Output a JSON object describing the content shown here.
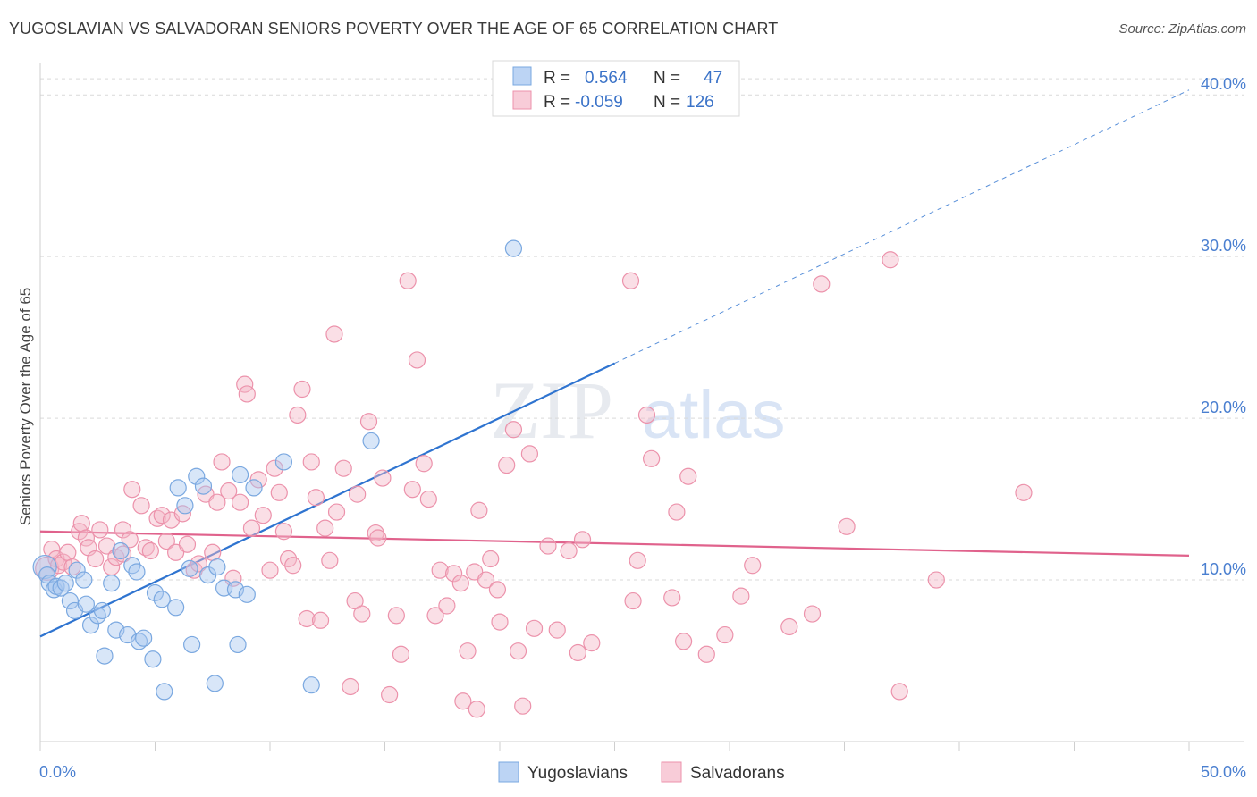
{
  "header": {
    "title": "YUGOSLAVIAN VS SALVADORAN SENIORS POVERTY OVER THE AGE OF 65 CORRELATION CHART",
    "source": "Source: ZipAtlas.com"
  },
  "watermark": {
    "zip": "ZIP",
    "atlas": "atlas"
  },
  "legend": {
    "rows": [
      {
        "r_label": "R =",
        "r_value": "0.564",
        "n_label": "N =",
        "n_value": "47",
        "color": "#a9c8f0"
      },
      {
        "r_label": "R =",
        "r_value": "-0.059",
        "n_label": "N =",
        "n_value": "126",
        "color": "#f5b8c8"
      }
    ]
  },
  "bottom_legend": [
    {
      "label": "Yugoslavians",
      "color": "#a9c8f0"
    },
    {
      "label": "Salvadorans",
      "color": "#f5b8c8"
    }
  ],
  "chart_data": {
    "type": "scatter",
    "title": "YUGOSLAVIAN VS SALVADORAN SENIORS POVERTY OVER THE AGE OF 65 CORRELATION CHART",
    "ylabel": "Seniors Poverty Over the Age of 65",
    "xlabel": "",
    "xlim": [
      0,
      50
    ],
    "ylim": [
      0,
      42
    ],
    "x_tick_labels": [
      {
        "value": 0,
        "label": "0.0%"
      },
      {
        "value": 50,
        "label": "50.0%"
      }
    ],
    "y_tick_labels": [
      {
        "value": 10,
        "label": "10.0%"
      },
      {
        "value": 20,
        "label": "20.0%"
      },
      {
        "value": 30,
        "label": "30.0%"
      },
      {
        "value": 40,
        "label": "40.0%"
      }
    ],
    "grid": "horizontal dashed",
    "legend_position": "top-center",
    "series": [
      {
        "name": "Yugoslavians",
        "color": "#a9c8f0",
        "stroke": "#7aa8e0",
        "trend": {
          "x0": 0,
          "y0": 6.5,
          "x1": 25,
          "y1": 23.4,
          "dash_to_x": 50,
          "dash_to_y": 40.3,
          "color": "#2f74d0"
        },
        "points": [
          [
            0.2,
            10.8
          ],
          [
            0.3,
            10.3
          ],
          [
            0.4,
            9.8
          ],
          [
            0.6,
            9.4
          ],
          [
            0.7,
            9.6
          ],
          [
            0.9,
            9.5
          ],
          [
            1.1,
            9.8
          ],
          [
            1.3,
            8.7
          ],
          [
            1.5,
            8.1
          ],
          [
            1.6,
            10.6
          ],
          [
            1.9,
            10.0
          ],
          [
            2.0,
            8.5
          ],
          [
            2.2,
            7.2
          ],
          [
            2.5,
            7.8
          ],
          [
            2.7,
            8.1
          ],
          [
            2.8,
            5.3
          ],
          [
            3.1,
            9.8
          ],
          [
            3.3,
            6.9
          ],
          [
            3.5,
            11.8
          ],
          [
            3.8,
            6.6
          ],
          [
            4.0,
            10.9
          ],
          [
            4.2,
            10.5
          ],
          [
            4.3,
            6.2
          ],
          [
            4.5,
            6.4
          ],
          [
            4.9,
            5.1
          ],
          [
            5.0,
            9.2
          ],
          [
            5.3,
            8.8
          ],
          [
            5.4,
            3.1
          ],
          [
            5.9,
            8.3
          ],
          [
            6.0,
            15.7
          ],
          [
            6.3,
            14.6
          ],
          [
            6.5,
            10.7
          ],
          [
            6.6,
            6.0
          ],
          [
            6.8,
            16.4
          ],
          [
            7.1,
            15.8
          ],
          [
            7.3,
            10.3
          ],
          [
            7.6,
            3.6
          ],
          [
            7.7,
            10.8
          ],
          [
            8.0,
            9.5
          ],
          [
            8.5,
            9.4
          ],
          [
            8.6,
            6.0
          ],
          [
            8.7,
            16.5
          ],
          [
            9.0,
            9.1
          ],
          [
            9.3,
            15.7
          ],
          [
            10.6,
            17.3
          ],
          [
            11.8,
            3.5
          ],
          [
            14.4,
            18.6
          ],
          [
            20.6,
            30.5
          ]
        ]
      },
      {
        "name": "Salvadorans",
        "color": "#f5b8c8",
        "stroke": "#ec92ab",
        "trend": {
          "x0": 0,
          "y0": 13.0,
          "x1": 50,
          "y1": 11.5,
          "color": "#e0628c"
        },
        "points": [
          [
            0.3,
            10.7
          ],
          [
            0.5,
            11.9
          ],
          [
            0.7,
            11.3
          ],
          [
            0.8,
            10.9
          ],
          [
            1.0,
            11.1
          ],
          [
            1.2,
            11.7
          ],
          [
            1.4,
            10.8
          ],
          [
            1.7,
            13.0
          ],
          [
            1.8,
            13.5
          ],
          [
            2.0,
            12.6
          ],
          [
            2.1,
            12.0
          ],
          [
            2.4,
            11.3
          ],
          [
            2.6,
            13.1
          ],
          [
            2.9,
            12.1
          ],
          [
            3.1,
            10.8
          ],
          [
            3.3,
            11.4
          ],
          [
            3.6,
            11.6
          ],
          [
            3.6,
            13.1
          ],
          [
            3.9,
            12.5
          ],
          [
            4.0,
            15.6
          ],
          [
            4.4,
            14.6
          ],
          [
            4.6,
            12.0
          ],
          [
            4.8,
            11.8
          ],
          [
            5.1,
            13.8
          ],
          [
            5.3,
            14.0
          ],
          [
            5.5,
            12.4
          ],
          [
            5.7,
            13.7
          ],
          [
            5.9,
            11.7
          ],
          [
            6.2,
            14.1
          ],
          [
            6.4,
            12.2
          ],
          [
            6.7,
            10.6
          ],
          [
            6.9,
            11.0
          ],
          [
            7.2,
            15.3
          ],
          [
            7.5,
            11.7
          ],
          [
            7.7,
            14.8
          ],
          [
            7.9,
            17.3
          ],
          [
            8.2,
            15.5
          ],
          [
            8.4,
            10.1
          ],
          [
            8.7,
            14.8
          ],
          [
            8.9,
            22.1
          ],
          [
            9.0,
            21.5
          ],
          [
            9.2,
            13.2
          ],
          [
            9.5,
            16.2
          ],
          [
            9.7,
            14.0
          ],
          [
            10.0,
            10.6
          ],
          [
            10.2,
            16.9
          ],
          [
            10.4,
            15.4
          ],
          [
            10.6,
            13.0
          ],
          [
            10.8,
            11.3
          ],
          [
            11.0,
            10.9
          ],
          [
            11.2,
            20.2
          ],
          [
            11.4,
            21.8
          ],
          [
            11.6,
            7.6
          ],
          [
            11.8,
            17.3
          ],
          [
            12.0,
            15.1
          ],
          [
            12.2,
            7.5
          ],
          [
            12.4,
            13.2
          ],
          [
            12.6,
            11.2
          ],
          [
            12.8,
            25.2
          ],
          [
            12.9,
            14.2
          ],
          [
            13.2,
            16.9
          ],
          [
            13.5,
            3.4
          ],
          [
            13.7,
            8.7
          ],
          [
            13.8,
            15.3
          ],
          [
            14.0,
            7.9
          ],
          [
            14.3,
            19.8
          ],
          [
            14.6,
            12.9
          ],
          [
            14.7,
            12.6
          ],
          [
            14.9,
            16.3
          ],
          [
            15.2,
            2.9
          ],
          [
            15.5,
            7.8
          ],
          [
            15.7,
            5.4
          ],
          [
            16.0,
            28.5
          ],
          [
            16.2,
            15.6
          ],
          [
            16.4,
            23.6
          ],
          [
            16.7,
            17.2
          ],
          [
            16.9,
            15.0
          ],
          [
            17.2,
            7.8
          ],
          [
            17.4,
            10.6
          ],
          [
            17.7,
            8.4
          ],
          [
            18.0,
            10.4
          ],
          [
            18.3,
            9.8
          ],
          [
            18.6,
            5.6
          ],
          [
            18.9,
            10.5
          ],
          [
            19.1,
            14.3
          ],
          [
            19.4,
            10.0
          ],
          [
            19.6,
            11.3
          ],
          [
            19.9,
            9.4
          ],
          [
            20.0,
            7.4
          ],
          [
            20.3,
            17.1
          ],
          [
            20.6,
            19.3
          ],
          [
            20.8,
            5.6
          ],
          [
            21.3,
            17.8
          ],
          [
            21.5,
            7.0
          ],
          [
            21.0,
            2.2
          ],
          [
            19.0,
            2.0
          ],
          [
            18.4,
            2.5
          ],
          [
            22.1,
            12.1
          ],
          [
            22.5,
            6.9
          ],
          [
            23.0,
            11.8
          ],
          [
            23.4,
            5.5
          ],
          [
            23.6,
            12.5
          ],
          [
            24.0,
            6.1
          ],
          [
            25.7,
            28.5
          ],
          [
            25.8,
            8.7
          ],
          [
            26.0,
            11.2
          ],
          [
            26.4,
            20.2
          ],
          [
            26.6,
            17.5
          ],
          [
            27.5,
            8.9
          ],
          [
            27.7,
            14.2
          ],
          [
            28.0,
            6.2
          ],
          [
            28.2,
            16.4
          ],
          [
            29.0,
            5.4
          ],
          [
            29.8,
            6.6
          ],
          [
            30.5,
            9.0
          ],
          [
            31.0,
            10.9
          ],
          [
            32.6,
            7.1
          ],
          [
            33.6,
            7.9
          ],
          [
            34.0,
            28.3
          ],
          [
            35.1,
            13.3
          ],
          [
            37.0,
            29.8
          ],
          [
            37.4,
            3.1
          ],
          [
            39.0,
            10.0
          ],
          [
            42.8,
            15.4
          ]
        ]
      }
    ]
  }
}
